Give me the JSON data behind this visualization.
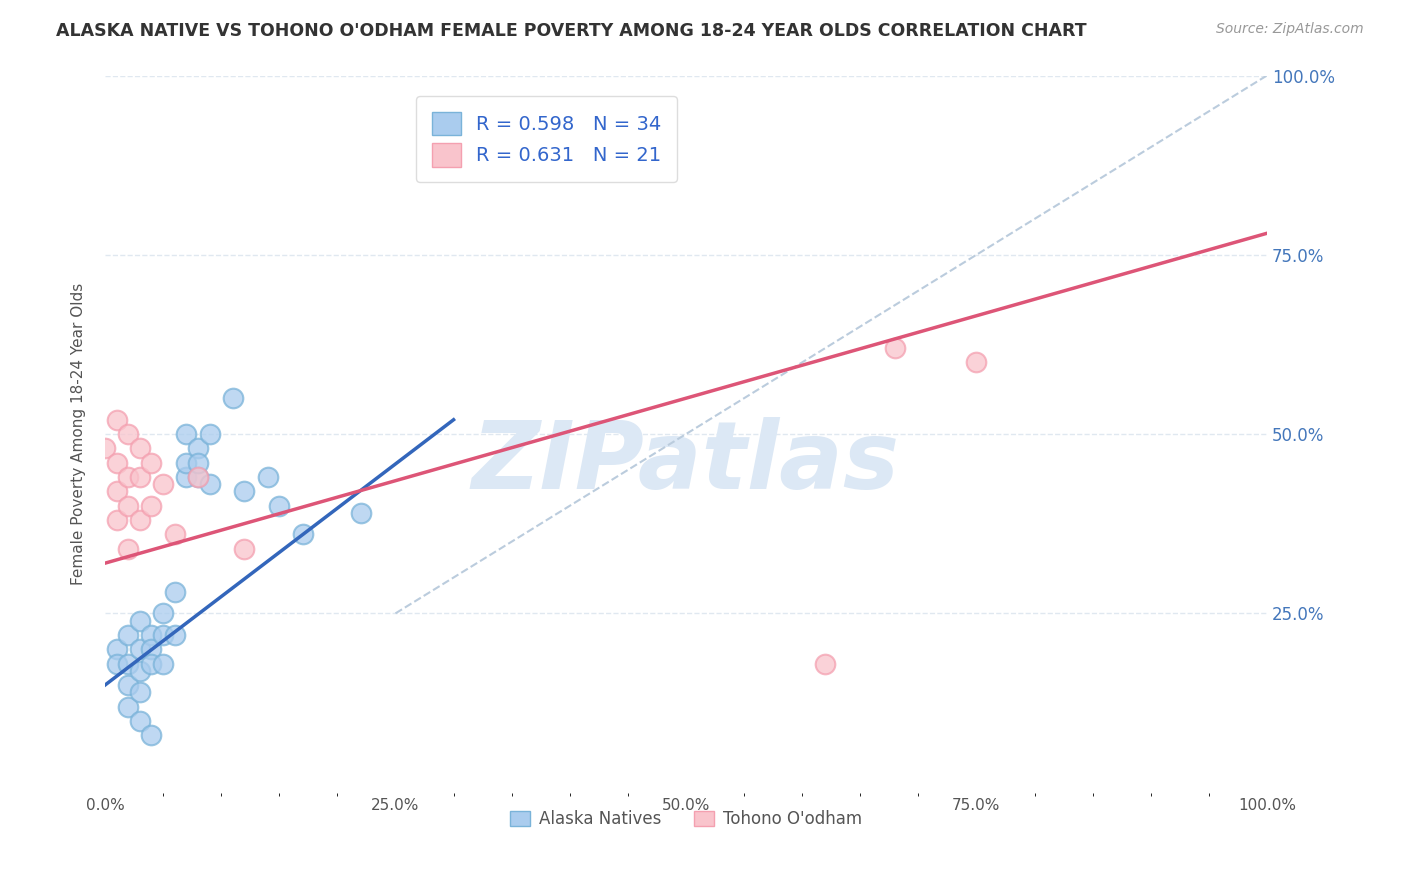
{
  "title": "ALASKA NATIVE VS TOHONO O'ODHAM FEMALE POVERTY AMONG 18-24 YEAR OLDS CORRELATION CHART",
  "source": "Source: ZipAtlas.com",
  "ylabel": "Female Poverty Among 18-24 Year Olds",
  "xlim": [
    0,
    1.0
  ],
  "ylim": [
    0,
    1.0
  ],
  "xtick_labels": [
    "0.0%",
    "",
    "",
    "",
    "",
    "25.0%",
    "",
    "",
    "",
    "",
    "50.0%",
    "",
    "",
    "",
    "",
    "75.0%",
    "",
    "",
    "",
    "",
    "100.0%"
  ],
  "xtick_vals": [
    0.0,
    0.05,
    0.1,
    0.15,
    0.2,
    0.25,
    0.3,
    0.35,
    0.4,
    0.45,
    0.5,
    0.55,
    0.6,
    0.65,
    0.7,
    0.75,
    0.8,
    0.85,
    0.9,
    0.95,
    1.0
  ],
  "ytick_labels_right": [
    "25.0%",
    "50.0%",
    "75.0%",
    "100.0%"
  ],
  "ytick_vals": [
    0.25,
    0.5,
    0.75,
    1.0
  ],
  "legend_labels": [
    "Alaska Natives",
    "Tohono O'odham"
  ],
  "r_blue": 0.598,
  "n_blue": 34,
  "r_pink": 0.631,
  "n_pink": 21,
  "blue_color": "#7ab3d9",
  "pink_color": "#f4a0b0",
  "blue_scatter_fill": "#aaccee",
  "pink_scatter_fill": "#f9c4cc",
  "blue_line_color": "#3366bb",
  "pink_line_color": "#dd5577",
  "diag_line_color": "#bbccdd",
  "background_color": "#ffffff",
  "watermark": "ZIPatlas",
  "watermark_color": "#dce8f5",
  "blue_scatter": [
    [
      0.01,
      0.2
    ],
    [
      0.01,
      0.18
    ],
    [
      0.02,
      0.22
    ],
    [
      0.02,
      0.18
    ],
    [
      0.02,
      0.15
    ],
    [
      0.02,
      0.12
    ],
    [
      0.03,
      0.24
    ],
    [
      0.03,
      0.2
    ],
    [
      0.03,
      0.17
    ],
    [
      0.03,
      0.14
    ],
    [
      0.03,
      0.1
    ],
    [
      0.04,
      0.22
    ],
    [
      0.04,
      0.2
    ],
    [
      0.04,
      0.18
    ],
    [
      0.04,
      0.08
    ],
    [
      0.05,
      0.25
    ],
    [
      0.05,
      0.22
    ],
    [
      0.05,
      0.18
    ],
    [
      0.06,
      0.28
    ],
    [
      0.06,
      0.22
    ],
    [
      0.07,
      0.44
    ],
    [
      0.07,
      0.46
    ],
    [
      0.07,
      0.5
    ],
    [
      0.08,
      0.48
    ],
    [
      0.08,
      0.44
    ],
    [
      0.08,
      0.46
    ],
    [
      0.09,
      0.43
    ],
    [
      0.09,
      0.5
    ],
    [
      0.11,
      0.55
    ],
    [
      0.12,
      0.42
    ],
    [
      0.14,
      0.44
    ],
    [
      0.15,
      0.4
    ],
    [
      0.17,
      0.36
    ],
    [
      0.22,
      0.39
    ]
  ],
  "pink_scatter": [
    [
      0.0,
      0.48
    ],
    [
      0.01,
      0.52
    ],
    [
      0.01,
      0.46
    ],
    [
      0.01,
      0.42
    ],
    [
      0.01,
      0.38
    ],
    [
      0.02,
      0.5
    ],
    [
      0.02,
      0.44
    ],
    [
      0.02,
      0.4
    ],
    [
      0.02,
      0.34
    ],
    [
      0.03,
      0.48
    ],
    [
      0.03,
      0.44
    ],
    [
      0.03,
      0.38
    ],
    [
      0.04,
      0.46
    ],
    [
      0.04,
      0.4
    ],
    [
      0.05,
      0.43
    ],
    [
      0.06,
      0.36
    ],
    [
      0.08,
      0.44
    ],
    [
      0.12,
      0.34
    ],
    [
      0.62,
      0.18
    ],
    [
      0.68,
      0.62
    ],
    [
      0.75,
      0.6
    ]
  ],
  "blue_line": [
    [
      0.0,
      0.15
    ],
    [
      0.3,
      0.52
    ]
  ],
  "pink_line": [
    [
      0.0,
      0.32
    ],
    [
      1.0,
      0.78
    ]
  ],
  "diag_line": [
    [
      0.25,
      0.25
    ],
    [
      1.0,
      1.0
    ]
  ],
  "grid_color": "#e0e8f0",
  "tick_label_color": "#4477bb",
  "ytick_color_right": "#4477bb"
}
